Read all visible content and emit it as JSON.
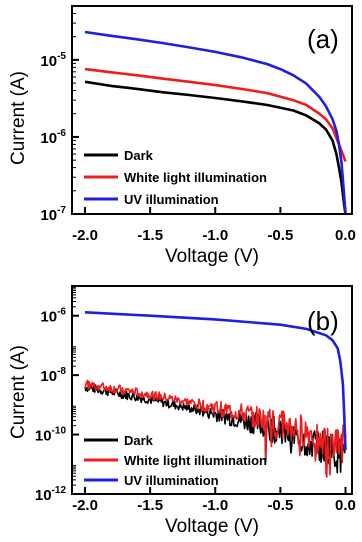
{
  "chart_data": [
    {
      "type": "line",
      "panel_label": "(a)",
      "xlabel": "Voltage (V)",
      "ylabel": "Current (A)",
      "xlim": [
        -2.1,
        0.05
      ],
      "ylim": [
        1e-07,
        5e-05
      ],
      "yscale": "log",
      "x_ticks": [
        -2.0,
        -1.5,
        -1.0,
        -0.5,
        0.0
      ],
      "x_tick_labels": [
        "-2.0",
        "-1.5",
        "-1.0",
        "-0.5",
        "0.0"
      ],
      "y_ticks": [
        1e-07,
        1e-06,
        1e-05
      ],
      "y_tick_labels": [
        {
          "base": "10",
          "exp": "-7"
        },
        {
          "base": "10",
          "exp": "-6"
        },
        {
          "base": "10",
          "exp": "-5"
        }
      ],
      "grid": false,
      "legend_position": "bottom-left",
      "series": [
        {
          "name": "Dark",
          "color": "#000000",
          "x": [
            -2.0,
            -1.8,
            -1.6,
            -1.4,
            -1.2,
            -1.0,
            -0.8,
            -0.6,
            -0.4,
            -0.3,
            -0.2,
            -0.15,
            -0.1,
            -0.07,
            -0.05,
            -0.03,
            -0.02,
            -0.01,
            0.0
          ],
          "y": [
            5.2e-06,
            4.6e-06,
            4.2e-06,
            3.8e-06,
            3.5e-06,
            3.2e-06,
            2.9e-06,
            2.6e-06,
            2.2e-06,
            1.9e-06,
            1.5e-06,
            1.25e-06,
            9e-07,
            6e-07,
            4e-07,
            2.5e-07,
            1.8e-07,
            1.3e-07,
            1e-07
          ]
        },
        {
          "name": "White light illumination",
          "color": "#ee1c1c",
          "x": [
            -2.0,
            -1.8,
            -1.6,
            -1.4,
            -1.2,
            -1.0,
            -0.8,
            -0.6,
            -0.4,
            -0.3,
            -0.2,
            -0.15,
            -0.1,
            -0.05,
            0.0
          ],
          "y": [
            7.6e-06,
            6.9e-06,
            6.3e-06,
            5.7e-06,
            5.2e-06,
            4.7e-06,
            4.2e-06,
            3.7e-06,
            3e-06,
            2.6e-06,
            2e-06,
            1.7e-06,
            1.3e-06,
            8e-07,
            4.8e-07
          ]
        },
        {
          "name": "UV illumination",
          "color": "#1f1fe0",
          "x": [
            -2.0,
            -1.8,
            -1.6,
            -1.4,
            -1.2,
            -1.0,
            -0.8,
            -0.6,
            -0.5,
            -0.4,
            -0.3,
            -0.2,
            -0.15,
            -0.1,
            -0.07,
            -0.05,
            -0.03,
            -0.02,
            -0.01,
            0.0
          ],
          "y": [
            2.3e-05,
            2.05e-05,
            1.85e-05,
            1.65e-05,
            1.45e-05,
            1.27e-05,
            1.08e-05,
            8.8e-06,
            7.6e-06,
            6.3e-06,
            4.9e-06,
            3.3e-06,
            2.5e-06,
            1.7e-06,
            1.2e-06,
            8e-07,
            4.5e-07,
            2.8e-07,
            1.7e-07,
            1e-07
          ]
        }
      ]
    },
    {
      "type": "line",
      "panel_label": "(b)",
      "xlabel": "Voltage (V)",
      "ylabel": "Current (A)",
      "xlim": [
        -2.1,
        0.05
      ],
      "ylim": [
        1e-12,
        1e-05
      ],
      "yscale": "log",
      "x_ticks": [
        -2.0,
        -1.5,
        -1.0,
        -0.5,
        0.0
      ],
      "x_tick_labels": [
        "-2.0",
        "-1.5",
        "-1.0",
        "-0.5",
        "0.0"
      ],
      "y_ticks": [
        1e-12,
        1e-10,
        1e-08,
        1e-06
      ],
      "y_tick_labels": [
        {
          "base": "10",
          "exp": "-12"
        },
        {
          "base": "10",
          "exp": "-10"
        },
        {
          "base": "10",
          "exp": "-8"
        },
        {
          "base": "10",
          "exp": "-6"
        }
      ],
      "grid": false,
      "legend_position": "bottom-left",
      "series": [
        {
          "name": "Dark",
          "color": "#000000",
          "noisy": true,
          "x": [
            -2.0,
            -1.5,
            -1.0,
            -0.7,
            -0.5,
            -0.3,
            -0.1,
            -0.03,
            0.0
          ],
          "y": [
            4e-09,
            1.5e-09,
            5e-10,
            2.5e-10,
            1.2e-10,
            6e-11,
            3e-11,
            2e-11,
            1e-10
          ]
        },
        {
          "name": "White light illumination",
          "color": "#ee1c1c",
          "noisy": true,
          "x": [
            -2.0,
            -1.5,
            -1.0,
            -0.7,
            -0.5,
            -0.3,
            -0.1,
            -0.03,
            0.0
          ],
          "y": [
            5e-09,
            2.2e-09,
            8e-10,
            4e-10,
            2.3e-10,
            1.2e-10,
            6e-11,
            4e-11,
            1e-10
          ]
        },
        {
          "name": "UV illumination",
          "color": "#1f1fe0",
          "x": [
            -2.0,
            -1.5,
            -1.0,
            -0.5,
            -0.3,
            -0.15,
            -0.1,
            -0.06,
            -0.04,
            -0.02,
            -0.01,
            0.0
          ],
          "y": [
            1.3e-06,
            1e-06,
            7.5e-07,
            5e-07,
            3.6e-07,
            2.2e-07,
            1.5e-07,
            8e-08,
            3e-08,
            5e-09,
            5e-10,
            3e-11
          ]
        }
      ]
    }
  ]
}
